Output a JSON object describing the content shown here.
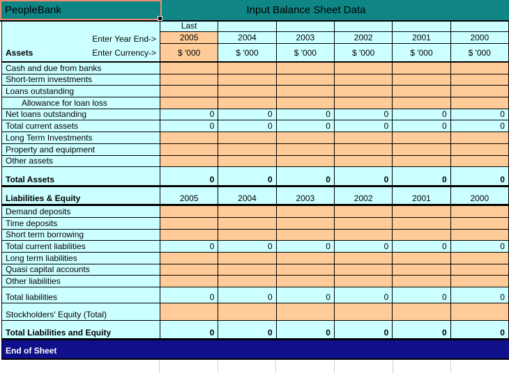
{
  "titlebar": {
    "company": "PeopleBank",
    "title": "Input Balance Sheet Data"
  },
  "colors": {
    "teal": "#0F8585",
    "light_cyan": "#CCFFFF",
    "input_orange": "#FFCC99",
    "navy": "#10108A",
    "selection_border": "#EB8E6F"
  },
  "header": {
    "last": "Last",
    "enter_year": "Enter Year End->",
    "assets": "Assets",
    "enter_currency": "Enter Currency->",
    "years": [
      "2005",
      "2004",
      "2003",
      "2002",
      "2001",
      "2000"
    ],
    "currency_units": [
      "$ '000",
      "$ '000",
      "$ '000",
      "$ '000",
      "$ '000",
      "$ '000"
    ]
  },
  "assets_section": {
    "rows": [
      {
        "label": "Cash and due from banks",
        "style": "input",
        "indent": false,
        "values": [
          "",
          "",
          "",
          "",
          "",
          ""
        ]
      },
      {
        "label": "Short-term investments",
        "style": "input",
        "indent": false,
        "values": [
          "",
          "",
          "",
          "",
          "",
          ""
        ]
      },
      {
        "label": "Loans outstanding",
        "style": "input",
        "indent": false,
        "values": [
          "",
          "",
          "",
          "",
          "",
          ""
        ]
      },
      {
        "label": "Allowance for loan loss",
        "style": "input",
        "indent": true,
        "values": [
          "",
          "",
          "",
          "",
          "",
          ""
        ]
      },
      {
        "label": "Net loans outstanding",
        "style": "calc",
        "indent": false,
        "values": [
          "0",
          "0",
          "0",
          "0",
          "0",
          "0"
        ]
      },
      {
        "label": "Total current assets",
        "style": "calc",
        "indent": false,
        "values": [
          "0",
          "0",
          "0",
          "0",
          "0",
          "0"
        ]
      },
      {
        "label": "Long Term Investments",
        "style": "input",
        "indent": false,
        "values": [
          "",
          "",
          "",
          "",
          "",
          ""
        ]
      },
      {
        "label": "Property and equipment",
        "style": "input",
        "indent": false,
        "values": [
          "",
          "",
          "",
          "",
          "",
          ""
        ]
      },
      {
        "label": "Other assets",
        "style": "input",
        "indent": false,
        "values": [
          "",
          "",
          "",
          "",
          "",
          ""
        ]
      }
    ],
    "total": {
      "label": "Total Assets",
      "values": [
        "0",
        "0",
        "0",
        "0",
        "0",
        "0"
      ]
    }
  },
  "liabilities_section": {
    "header_label": "Liabilities & Equity",
    "years": [
      "2005",
      "2004",
      "2003",
      "2002",
      "2001",
      "2000"
    ],
    "rows": [
      {
        "label": "Demand deposits",
        "style": "input",
        "values": [
          "",
          "",
          "",
          "",
          "",
          ""
        ]
      },
      {
        "label": "Time deposits",
        "style": "input",
        "values": [
          "",
          "",
          "",
          "",
          "",
          ""
        ]
      },
      {
        "label": "Short term borrowing",
        "style": "input",
        "values": [
          "",
          "",
          "",
          "",
          "",
          ""
        ]
      },
      {
        "label": "Total current liabilities",
        "style": "calc",
        "values": [
          "0",
          "0",
          "0",
          "0",
          "0",
          "0"
        ]
      },
      {
        "label": "Long term liabilities",
        "style": "input",
        "values": [
          "",
          "",
          "",
          "",
          "",
          ""
        ]
      },
      {
        "label": "Quasi capital accounts",
        "style": "input",
        "values": [
          "",
          "",
          "",
          "",
          "",
          ""
        ]
      },
      {
        "label": "Other liabilities",
        "style": "input",
        "values": [
          "",
          "",
          "",
          "",
          "",
          ""
        ]
      },
      {
        "label": "Total liabilities",
        "style": "calc",
        "values": [
          "0",
          "0",
          "0",
          "0",
          "0",
          "0"
        ]
      },
      {
        "label": "Stockholders' Equity (Total)",
        "style": "input",
        "values": [
          "",
          "",
          "",
          "",
          "",
          ""
        ]
      },
      {
        "label": "Total Liabilities and Equity",
        "style": "total",
        "values": [
          "0",
          "0",
          "0",
          "0",
          "0",
          "0"
        ]
      }
    ]
  },
  "footer": {
    "end_of_sheet": "End of Sheet"
  }
}
